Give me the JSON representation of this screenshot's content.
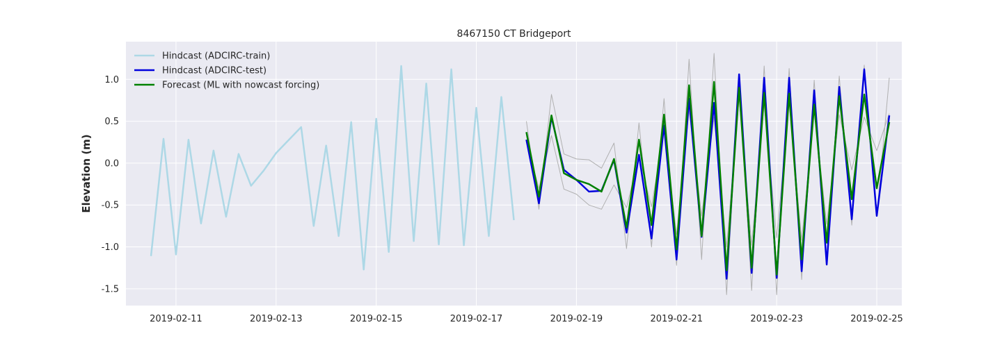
{
  "chart_data": {
    "type": "line",
    "title": "8467150 CT Bridgeport",
    "xlabel": "",
    "ylabel": "Elevation (m)",
    "xlim": [
      "2019-02-10",
      "2019-02-25T12:00"
    ],
    "ylim": [
      -1.7,
      1.45
    ],
    "xticks": [
      "2019-02-11",
      "2019-02-13",
      "2019-02-15",
      "2019-02-17",
      "2019-02-19",
      "2019-02-21",
      "2019-02-23",
      "2019-02-25"
    ],
    "yticks": [
      -1.5,
      -1.0,
      -0.5,
      0.0,
      0.5,
      1.0
    ],
    "ytick_labels": [
      "-1.5",
      "-1.0",
      "-0.5",
      "0.0",
      "0.5",
      "1.0"
    ],
    "grid": true,
    "legend_position": "top-left",
    "start_date": "2019-02-10",
    "series": [
      {
        "name": "Hindcast (ADCIRC-train)",
        "color": "#add8e6",
        "x": [
          "2019-02-10T12:00",
          "2019-02-10T18:00",
          "2019-02-11T00:00",
          "2019-02-11T06:00",
          "2019-02-11T12:00",
          "2019-02-11T18:00",
          "2019-02-12T00:00",
          "2019-02-12T06:00",
          "2019-02-12T12:00",
          "2019-02-12T18:00",
          "2019-02-13T00:00",
          "2019-02-13T12:00",
          "2019-02-13T18:00",
          "2019-02-14T00:00",
          "2019-02-14T06:00",
          "2019-02-14T12:00",
          "2019-02-14T18:00",
          "2019-02-15T00:00",
          "2019-02-15T06:00",
          "2019-02-15T12:00",
          "2019-02-15T18:00",
          "2019-02-16T00:00",
          "2019-02-16T06:00",
          "2019-02-16T12:00",
          "2019-02-16T18:00",
          "2019-02-17T00:00",
          "2019-02-17T06:00",
          "2019-02-17T12:00",
          "2019-02-17T18:00"
        ],
        "y": [
          -1.11,
          0.29,
          -1.09,
          0.28,
          -0.72,
          0.15,
          -0.64,
          0.11,
          -0.27,
          -0.09,
          0.12,
          0.43,
          -0.75,
          0.21,
          -0.87,
          0.49,
          -1.27,
          0.53,
          -1.06,
          1.16,
          -0.93,
          0.95,
          -0.97,
          1.12,
          -0.98,
          0.66,
          -0.87,
          0.79,
          -0.68
        ]
      },
      {
        "name": "Hindcast (ADCIRC-test)",
        "color": "#0000dd",
        "x": [
          "2019-02-18T00:00",
          "2019-02-18T06:00",
          "2019-02-18T12:00",
          "2019-02-18T18:00",
          "2019-02-19T00:00",
          "2019-02-19T06:00",
          "2019-02-19T12:00",
          "2019-02-19T18:00",
          "2019-02-20T00:00",
          "2019-02-20T06:00",
          "2019-02-20T12:00",
          "2019-02-20T18:00",
          "2019-02-21T00:00",
          "2019-02-21T06:00",
          "2019-02-21T12:00",
          "2019-02-21T18:00",
          "2019-02-22T00:00",
          "2019-02-22T06:00",
          "2019-02-22T12:00",
          "2019-02-22T18:00",
          "2019-02-23T00:00",
          "2019-02-23T06:00",
          "2019-02-23T12:00",
          "2019-02-23T18:00",
          "2019-02-24T00:00",
          "2019-02-24T06:00",
          "2019-02-24T12:00",
          "2019-02-24T18:00",
          "2019-02-25T00:00",
          "2019-02-25T06:00"
        ],
        "y": [
          0.28,
          -0.48,
          0.55,
          -0.08,
          -0.2,
          -0.34,
          -0.33,
          0.04,
          -0.83,
          0.1,
          -0.9,
          0.45,
          -1.15,
          0.77,
          -0.88,
          0.72,
          -1.38,
          1.06,
          -1.31,
          1.02,
          -1.37,
          1.02,
          -1.29,
          0.87,
          -1.21,
          0.91,
          -0.67,
          1.12,
          -0.63,
          0.57
        ]
      },
      {
        "name": "Forecast (ML with nowcast forcing)",
        "color": "#008000",
        "x": [
          "2019-02-18T00:00",
          "2019-02-18T06:00",
          "2019-02-18T12:00",
          "2019-02-18T18:00",
          "2019-02-19T00:00",
          "2019-02-19T06:00",
          "2019-02-19T12:00",
          "2019-02-19T18:00",
          "2019-02-20T00:00",
          "2019-02-20T06:00",
          "2019-02-20T12:00",
          "2019-02-20T18:00",
          "2019-02-21T00:00",
          "2019-02-21T06:00",
          "2019-02-21T12:00",
          "2019-02-21T18:00",
          "2019-02-22T00:00",
          "2019-02-22T06:00",
          "2019-02-22T12:00",
          "2019-02-22T18:00",
          "2019-02-23T00:00",
          "2019-02-23T06:00",
          "2019-02-23T12:00",
          "2019-02-23T18:00",
          "2019-02-24T00:00",
          "2019-02-24T06:00",
          "2019-02-24T12:00",
          "2019-02-24T18:00",
          "2019-02-25T00:00",
          "2019-02-25T06:00"
        ],
        "y": [
          0.37,
          -0.4,
          0.57,
          -0.12,
          -0.2,
          -0.25,
          -0.34,
          0.05,
          -0.77,
          0.28,
          -0.74,
          0.58,
          -1.03,
          0.93,
          -0.87,
          0.97,
          -1.28,
          0.9,
          -1.25,
          0.84,
          -1.33,
          0.83,
          -1.15,
          0.7,
          -0.95,
          0.8,
          -0.43,
          0.82,
          -0.3,
          0.49
        ]
      },
      {
        "name": "",
        "color": "#b0b0b0",
        "x": [
          "2019-02-18T00:00",
          "2019-02-18T06:00",
          "2019-02-18T12:00",
          "2019-02-18T18:00",
          "2019-02-19T00:00",
          "2019-02-19T06:00",
          "2019-02-19T12:00",
          "2019-02-19T18:00",
          "2019-02-20T00:00",
          "2019-02-20T06:00",
          "2019-02-20T12:00",
          "2019-02-20T18:00",
          "2019-02-21T00:00",
          "2019-02-21T06:00",
          "2019-02-21T12:00",
          "2019-02-21T18:00",
          "2019-02-22T00:00",
          "2019-02-22T06:00",
          "2019-02-22T12:00",
          "2019-02-22T18:00",
          "2019-02-23T00:00",
          "2019-02-23T06:00",
          "2019-02-23T12:00",
          "2019-02-23T18:00",
          "2019-02-24T00:00",
          "2019-02-24T06:00",
          "2019-02-24T12:00",
          "2019-02-24T18:00",
          "2019-02-25T00:00",
          "2019-02-25T06:00"
        ],
        "y": [
          0.5,
          -0.55,
          0.82,
          0.11,
          0.05,
          0.04,
          -0.06,
          0.24,
          -1.02,
          0.48,
          -1.0,
          0.77,
          -1.22,
          1.24,
          -1.15,
          1.31,
          -1.57,
          0.97,
          -1.52,
          1.16,
          -1.57,
          1.13,
          -1.39,
          0.99,
          -1.22,
          1.04,
          -0.74,
          1.17,
          -0.63,
          1.02
        ]
      },
      {
        "name": "",
        "color": "#b0b0b0",
        "x": [
          "2019-02-18T00:00",
          "2019-02-18T06:00",
          "2019-02-18T12:00",
          "2019-02-18T18:00",
          "2019-02-19T00:00",
          "2019-02-19T06:00",
          "2019-02-19T12:00",
          "2019-02-19T18:00",
          "2019-02-20T00:00",
          "2019-02-20T06:00",
          "2019-02-20T12:00",
          "2019-02-20T18:00",
          "2019-02-21T00:00",
          "2019-02-21T06:00",
          "2019-02-21T12:00",
          "2019-02-21T18:00",
          "2019-02-22T00:00",
          "2019-02-22T06:00",
          "2019-02-22T12:00",
          "2019-02-22T18:00",
          "2019-02-23T00:00",
          "2019-02-23T06:00",
          "2019-02-23T12:00",
          "2019-02-23T18:00",
          "2019-02-24T00:00",
          "2019-02-24T06:00",
          "2019-02-24T12:00",
          "2019-02-24T18:00",
          "2019-02-25T00:00",
          "2019-02-25T06:00"
        ],
        "y": [
          0.25,
          -0.3,
          0.33,
          -0.31,
          -0.37,
          -0.5,
          -0.55,
          -0.26,
          -0.53,
          0.08,
          -0.52,
          0.39,
          -0.85,
          0.63,
          -0.63,
          0.55,
          -1.0,
          0.78,
          -0.98,
          0.71,
          -0.89,
          0.72,
          -0.92,
          0.62,
          -0.73,
          0.58,
          -0.08,
          0.55,
          0.15,
          0.59
        ]
      }
    ]
  }
}
